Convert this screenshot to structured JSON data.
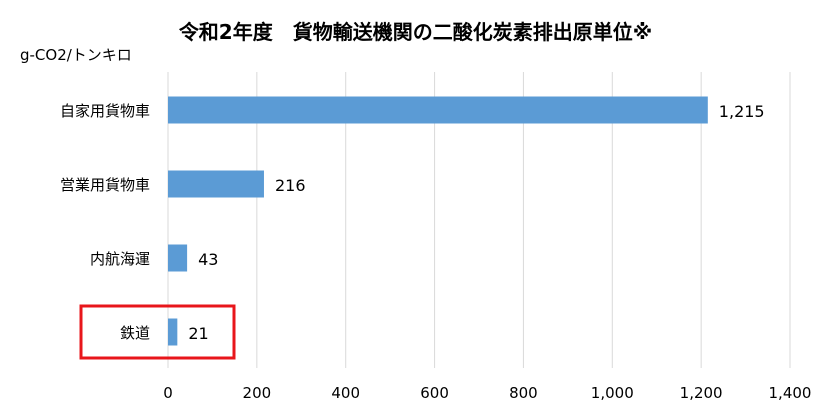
{
  "chart_data": {
    "type": "bar",
    "orientation": "horizontal",
    "title": "令和2年度　貨物輸送機関の二酸化炭素排出原単位※",
    "unit_label": "g-CO2/トンキロ",
    "categories": [
      "自家用貨物車",
      "営業用貨物車",
      "内航海運",
      "鉄道"
    ],
    "values": [
      1215,
      216,
      43,
      21
    ],
    "value_labels": [
      "1,215",
      "216",
      "43",
      "21"
    ],
    "xlim": [
      0,
      1400
    ],
    "x_ticks": [
      0,
      200,
      400,
      600,
      800,
      1000,
      1200,
      1400
    ],
    "x_tick_labels": [
      "0",
      "200",
      "400",
      "600",
      "800",
      "1,000",
      "1,200",
      "1,400"
    ],
    "grid": true,
    "bar_color": "#5b9bd5",
    "gridline_color": "#d9d9d9",
    "highlight": {
      "category": "鉄道",
      "color": "#e8161b"
    }
  }
}
